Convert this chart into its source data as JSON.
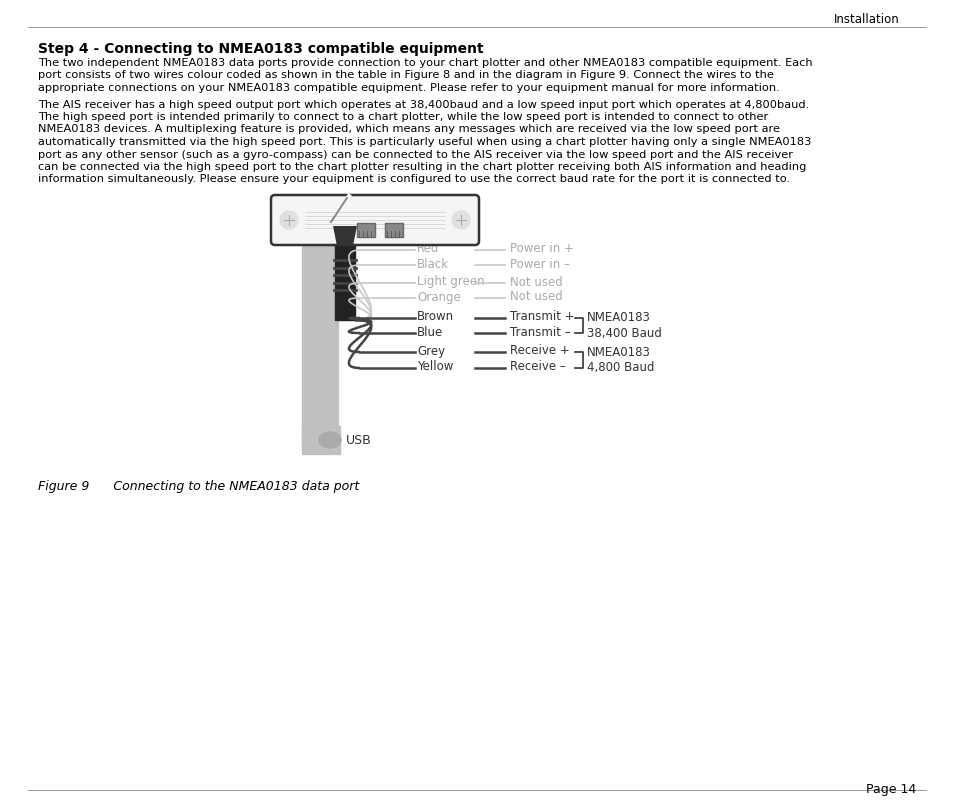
{
  "bg_color": "#ffffff",
  "header_text": "Installation",
  "title": "Step 4 - Connecting to NMEA0183 compatible equipment",
  "para1_lines": [
    "The two independent NMEA0183 data ports provide connection to your chart plotter and other NMEA0183 compatible equipment. Each",
    "port consists of two wires colour coded as shown in the table in Figure 8 and in the diagram in Figure 9. Connect the wires to the",
    "appropriate connections on your NMEA0183 compatible equipment. Please refer to your equipment manual for more information."
  ],
  "para2_lines": [
    "The AIS receiver has a high speed output port which operates at 38,400baud and a low speed input port which operates at 4,800baud.",
    "The high speed port is intended primarily to connect to a chart plotter, while the low speed port is intended to connect to other",
    "NMEA0183 devices. A multiplexing feature is provided, which means any messages which are received via the low speed port are",
    "automatically transmitted via the high speed port. This is particularly useful when using a chart plotter having only a single NMEA0183",
    "port as any other sensor (such as a gyro-compass) can be connected to the AIS receiver via the low speed port and the AIS receiver",
    "can be connected via the high speed port to the chart plotter resulting in the chart plotter receiving both AIS information and heading",
    "information simultaneously. Please ensure your equipment is configured to use the correct baud rate for the port it is connected to."
  ],
  "caption": "Figure 9      Connecting to the NMEA0183 data port",
  "footer": "Page 14",
  "wire_labels_left": [
    "Red",
    "Black",
    "Light green",
    "Orange",
    "Brown",
    "Blue",
    "Grey",
    "Yellow"
  ],
  "wire_labels_right": [
    "Power in +",
    "Power in –",
    "Not used",
    "Not used",
    "Transmit +",
    "Transmit –",
    "Receive +",
    "Receive –"
  ],
  "nmea1_label": "NMEA0183\n38,400 Baud",
  "nmea2_label": "NMEA0183\n4,800 Baud",
  "usb_label": "USB",
  "text_color": "#000000",
  "faded_label_color": "#aaaaaa",
  "active_label_color": "#333333",
  "faded_wire_color": "#c8c8c8",
  "active_wire_color": "#444444",
  "gray_cable_color": "#c0c0c0",
  "black_cable_color": "#222222",
  "device_fill": "#f5f5f5",
  "device_edge": "#333333"
}
